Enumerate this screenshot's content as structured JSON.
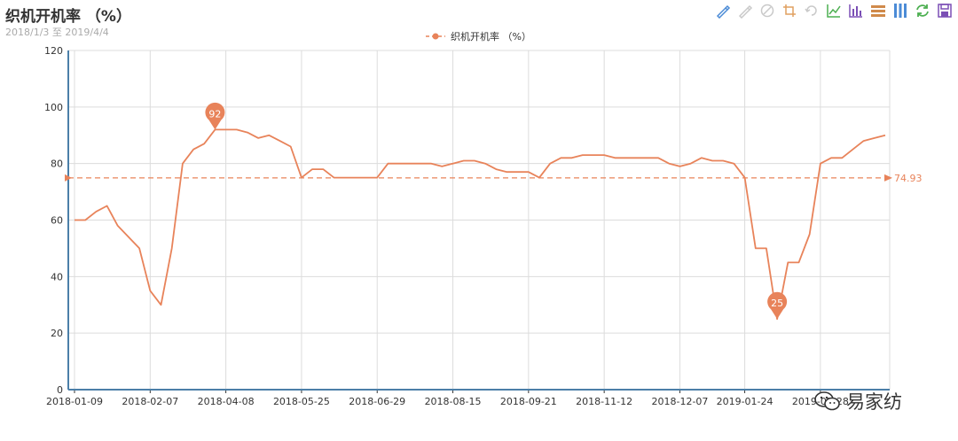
{
  "title": "织机开机率 （%）",
  "subtitle": "2018/1/3 至 2019/4/4",
  "toolbox": [
    {
      "name": "mark-icon",
      "color": "#4b8bd6"
    },
    {
      "name": "mark-undo-icon",
      "color": "#c9c9c9"
    },
    {
      "name": "mark-clear-icon",
      "color": "#c9c9c9"
    },
    {
      "name": "zoom-icon",
      "color": "#e0a060"
    },
    {
      "name": "zoom-reset-icon",
      "color": "#c9c9c9"
    },
    {
      "name": "line-chart-icon",
      "color": "#4caf50"
    },
    {
      "name": "bar-chart-icon",
      "color": "#7b4fb5"
    },
    {
      "name": "stack-icon",
      "color": "#d08a4a"
    },
    {
      "name": "tiled-icon",
      "color": "#4b8bd6"
    },
    {
      "name": "refresh-icon",
      "color": "#4caf50"
    },
    {
      "name": "save-icon",
      "color": "#7b4fb5"
    }
  ],
  "watermark": {
    "text": "易家纺"
  },
  "chart_data": {
    "type": "line",
    "title": "织机开机率 （%）",
    "subtitle": "2018/1/3 至 2019/4/4",
    "series": [
      {
        "name": "织机开机率 （%）",
        "color": "#e8835a",
        "values": [
          60,
          60,
          63,
          65,
          58,
          54,
          50,
          35,
          30,
          50,
          80,
          85,
          87,
          92,
          92,
          92,
          91,
          89,
          90,
          88,
          86,
          75,
          78,
          78,
          75,
          75,
          75,
          75,
          75,
          80,
          80,
          80,
          80,
          80,
          79,
          80,
          81,
          81,
          80,
          78,
          77,
          77,
          77,
          75,
          80,
          82,
          82,
          83,
          83,
          83,
          82,
          82,
          82,
          82,
          82,
          80,
          79,
          80,
          82,
          81,
          81,
          80,
          75,
          50,
          50,
          25,
          45,
          45,
          55,
          80,
          82,
          82,
          85,
          88,
          89,
          90
        ]
      }
    ],
    "x_tick_labels": [
      "2018-01-09",
      "2018-02-07",
      "2018-04-08",
      "2018-05-25",
      "2018-06-29",
      "2018-08-15",
      "2018-09-21",
      "2018-11-12",
      "2018-12-07",
      "2019-01-24",
      "2019-02-28"
    ],
    "ylim": [
      0,
      120
    ],
    "yticks": [
      0,
      20,
      40,
      60,
      80,
      100,
      120
    ],
    "grid": true,
    "legend": "top-center",
    "mark_points": [
      {
        "label": "92",
        "value": 92,
        "index": 13
      },
      {
        "label": "25",
        "value": 25,
        "index": 65
      }
    ],
    "mark_line": {
      "label": "74.93",
      "value": 74.93
    }
  }
}
